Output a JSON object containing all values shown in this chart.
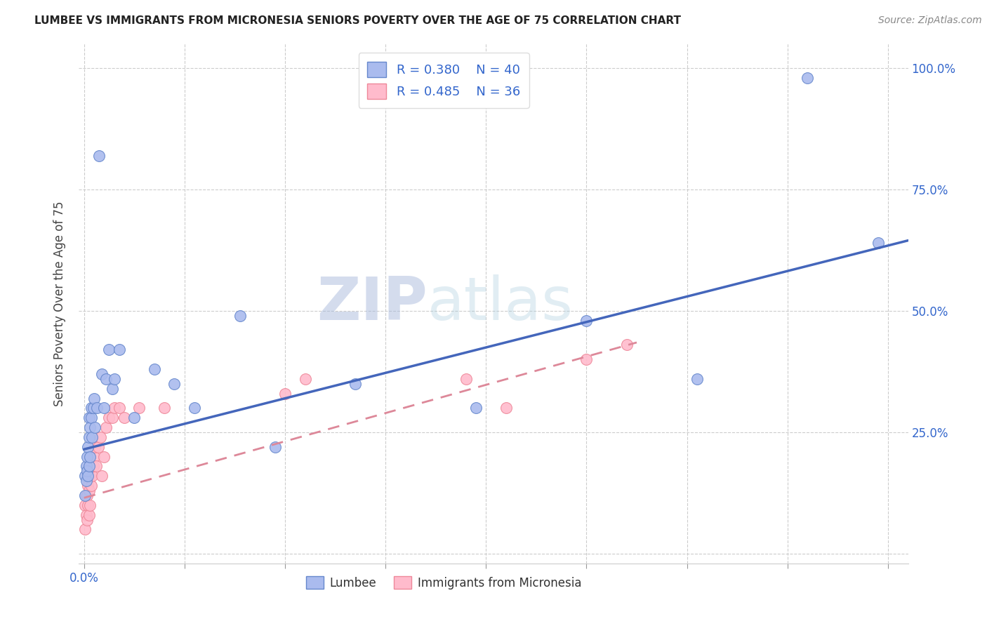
{
  "title": "LUMBEE VS IMMIGRANTS FROM MICRONESIA SENIORS POVERTY OVER THE AGE OF 75 CORRELATION CHART",
  "source": "Source: ZipAtlas.com",
  "ylabel": "Seniors Poverty Over the Age of 75",
  "xlabel_lumbee": "Lumbee",
  "xlabel_micronesia": "Immigrants from Micronesia",
  "xlim": [
    -0.005,
    0.82
  ],
  "ylim": [
    -0.02,
    1.05
  ],
  "xtick_positions": [
    0.0,
    0.1,
    0.2,
    0.3,
    0.4,
    0.5,
    0.6,
    0.7,
    0.8
  ],
  "xtick_labels_show": {
    "0.0": "0.0%"
  },
  "ytick_positions": [
    0.0,
    0.25,
    0.5,
    0.75,
    1.0
  ],
  "ytick_labels": [
    "",
    "25.0%",
    "50.0%",
    "75.0%",
    "100.0%"
  ],
  "lumbee_color": "#aabbee",
  "micronesia_color": "#ffbbcc",
  "lumbee_edge_color": "#6688cc",
  "micronesia_edge_color": "#ee8899",
  "lumbee_line_color": "#4466bb",
  "micronesia_line_color": "#dd8899",
  "watermark_zip": "ZIP",
  "watermark_atlas": "atlas",
  "legend_lumbee": "R = 0.380    N = 40",
  "legend_micronesia": "R = 0.485    N = 36",
  "lumbee_x": [
    0.001,
    0.001,
    0.002,
    0.002,
    0.003,
    0.003,
    0.004,
    0.004,
    0.005,
    0.005,
    0.005,
    0.006,
    0.006,
    0.007,
    0.007,
    0.008,
    0.009,
    0.01,
    0.011,
    0.013,
    0.015,
    0.018,
    0.02,
    0.022,
    0.025,
    0.028,
    0.03,
    0.035,
    0.05,
    0.07,
    0.09,
    0.11,
    0.155,
    0.19,
    0.27,
    0.39,
    0.5,
    0.61,
    0.72,
    0.79
  ],
  "lumbee_y": [
    0.12,
    0.16,
    0.15,
    0.18,
    0.17,
    0.2,
    0.16,
    0.22,
    0.18,
    0.24,
    0.28,
    0.2,
    0.26,
    0.28,
    0.3,
    0.24,
    0.3,
    0.32,
    0.26,
    0.3,
    0.82,
    0.37,
    0.3,
    0.36,
    0.42,
    0.34,
    0.36,
    0.42,
    0.28,
    0.38,
    0.35,
    0.3,
    0.49,
    0.22,
    0.35,
    0.3,
    0.48,
    0.36,
    0.98,
    0.64
  ],
  "micronesia_x": [
    0.001,
    0.001,
    0.002,
    0.002,
    0.003,
    0.003,
    0.004,
    0.004,
    0.005,
    0.005,
    0.006,
    0.006,
    0.007,
    0.008,
    0.009,
    0.01,
    0.011,
    0.012,
    0.014,
    0.016,
    0.018,
    0.02,
    0.022,
    0.025,
    0.028,
    0.03,
    0.035,
    0.04,
    0.055,
    0.08,
    0.2,
    0.22,
    0.38,
    0.42,
    0.5,
    0.54
  ],
  "micronesia_y": [
    0.05,
    0.1,
    0.08,
    0.12,
    0.07,
    0.12,
    0.1,
    0.14,
    0.08,
    0.13,
    0.1,
    0.16,
    0.14,
    0.16,
    0.18,
    0.2,
    0.22,
    0.18,
    0.22,
    0.24,
    0.16,
    0.2,
    0.26,
    0.28,
    0.28,
    0.3,
    0.3,
    0.28,
    0.3,
    0.3,
    0.33,
    0.36,
    0.36,
    0.3,
    0.4,
    0.43
  ],
  "lumbee_trend_x0": 0.0,
  "lumbee_trend_x1": 0.82,
  "lumbee_trend_y0": 0.215,
  "lumbee_trend_y1": 0.645,
  "micronesia_trend_x0": 0.0,
  "micronesia_trend_x1": 0.55,
  "micronesia_trend_y0": 0.115,
  "micronesia_trend_y1": 0.435,
  "background_color": "#ffffff",
  "grid_color": "#cccccc"
}
